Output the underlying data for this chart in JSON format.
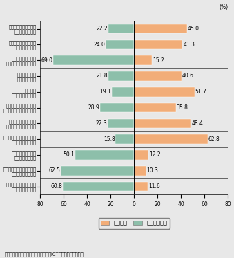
{
  "categories": [
    "相手と積極的に連絡を\nとるようになった",
    "以前からの友人と連絡\nをとるようになった",
    "顔を知らない友人と\n連絡をとるようになった",
    "他の人の意見で\n考えが深まった",
    "他の人から\n新たな価値観を得た",
    "興味・関心を他と共有し\n一緒に楽しむようになった",
    "興味がなかったことに\n興味が沸くようになった",
    "興味のあるものを積極的に\n調べるようになった",
    "誤解されたり傷つく\nことが多くなった",
    "何らかの連絡をとらないと\n落ち着かなくなった",
    "行動が束縛されていると\n感じるようになった"
  ],
  "omowanai": [
    22.2,
    24.0,
    69.0,
    21.8,
    19.1,
    28.9,
    22.3,
    15.8,
    50.1,
    62.5,
    60.8
  ],
  "omou": [
    45.0,
    41.3,
    15.2,
    40.6,
    51.7,
    35.8,
    48.4,
    62.8,
    12.2,
    10.3,
    11.6
  ],
  "color_omou": "#F2AD78",
  "color_omowanai": "#8DBFAA",
  "source": "（出典）「我が国の社会生活におけるICT利用に関する調査」",
  "legend_omou": "そう思う",
  "legend_omowanai": "そう思わない",
  "xlim": 80,
  "bg_color": "#e8e8e8"
}
